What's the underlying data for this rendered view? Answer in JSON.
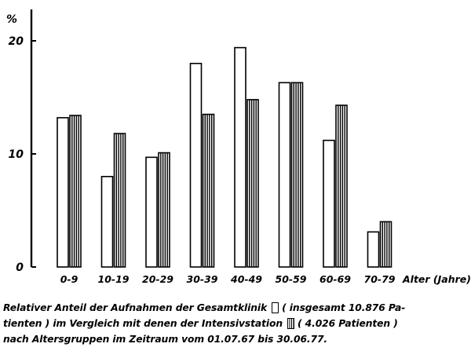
{
  "chart_data": {
    "type": "bar",
    "y_unit": "%",
    "xlabel": "Alter (Jahre)",
    "categories": [
      "0-9",
      "10-19",
      "20-29",
      "30-39",
      "40-49",
      "50-59",
      "60-69",
      "70-79"
    ],
    "ylim": [
      0,
      23
    ],
    "yticks": [
      0,
      10,
      20
    ],
    "grid": false,
    "legend": "inline in caption",
    "series": [
      {
        "name": "Gesamtklinik",
        "style": "open",
        "values": [
          13.2,
          8.0,
          9.7,
          18.0,
          19.4,
          16.3,
          11.2,
          3.1
        ]
      },
      {
        "name": "Intensivstation",
        "style": "hatched",
        "values": [
          13.4,
          11.8,
          10.1,
          13.5,
          14.8,
          16.3,
          14.3,
          4.0
        ]
      }
    ]
  },
  "caption": {
    "line1_a": "Relativer Anteil der Aufnahmen der Gesamtklinik",
    "line1_b": "( insgesamt 10.876 Pa-",
    "line2_a": "tienten ) im Vergleich mit denen der Intensivstation",
    "line2_b": "( 4.026 Patienten )",
    "line3": "nach Altersgruppen im Zeitraum vom 01.07.67 bis 30.06.77."
  },
  "colors": {
    "ink": "#000000",
    "paper": "#ffffff"
  }
}
